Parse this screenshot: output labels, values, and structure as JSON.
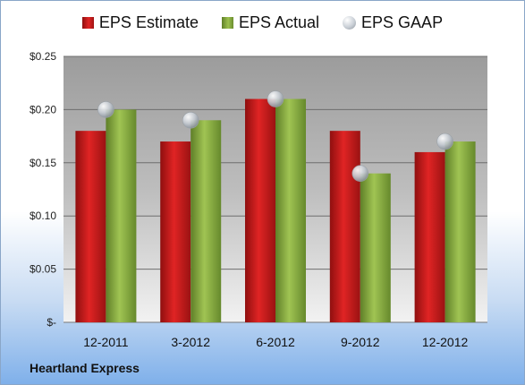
{
  "company": "Heartland Express",
  "legend": {
    "estimate": "EPS Estimate",
    "actual": "EPS Actual",
    "gaap": "EPS GAAP"
  },
  "colors": {
    "estimate": "#d21c1c",
    "actual": "#8db443",
    "gaap": "#c4cad1"
  },
  "chart_data": {
    "type": "bar",
    "categories": [
      "12-2011",
      "3-2012",
      "6-2012",
      "9-2012",
      "12-2012"
    ],
    "series": [
      {
        "name": "EPS Estimate",
        "values": [
          0.18,
          0.17,
          0.21,
          0.18,
          0.16
        ]
      },
      {
        "name": "EPS Actual",
        "values": [
          0.2,
          0.19,
          0.21,
          0.14,
          0.17
        ]
      },
      {
        "name": "EPS GAAP",
        "values": [
          0.2,
          0.19,
          0.21,
          0.14,
          0.17
        ],
        "marker": "circle"
      }
    ],
    "ylim": [
      0,
      0.25
    ],
    "yticks": [
      "$-",
      "$0.05",
      "$0.10",
      "$0.15",
      "$0.20",
      "$0.25"
    ],
    "grid": true,
    "legend_position": "top"
  }
}
